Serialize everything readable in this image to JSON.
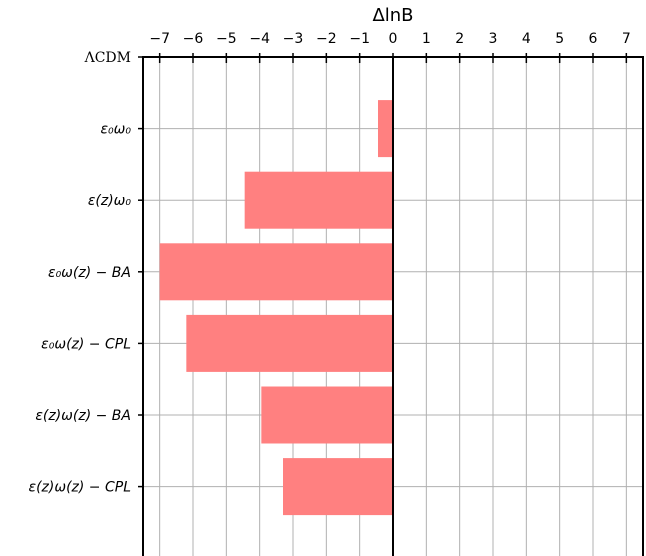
{
  "chart_data": {
    "type": "bar",
    "orientation": "horizontal",
    "xlabel": "ΔlnB",
    "xlim": [
      -7,
      7
    ],
    "x_ticks": [
      -7,
      -6,
      -5,
      -4,
      -3,
      -2,
      -1,
      0,
      1,
      2,
      3,
      4,
      5,
      6,
      7
    ],
    "x_tick_labels": [
      "−7",
      "−6",
      "−5",
      "−4",
      "−3",
      "−2",
      "−1",
      "0",
      "1",
      "2",
      "3",
      "4",
      "5",
      "6",
      "7"
    ],
    "x_axis_position": "top",
    "grid": true,
    "categories": [
      "ΛCDM",
      "ε₀ω₀",
      "ε(z)ω₀",
      "ε₀ω(z) − BA",
      "ε₀ω(z) − CPL",
      "ε(z)ω(z) − BA",
      "ε(z)ω(z) − CPL"
    ],
    "values": [
      0,
      -0.45,
      -4.45,
      -7.0,
      -6.2,
      -3.95,
      -3.3
    ],
    "bar_color": "#ff8080",
    "zero_line_color": "#000000",
    "grid_color": "#b0b0b0"
  }
}
